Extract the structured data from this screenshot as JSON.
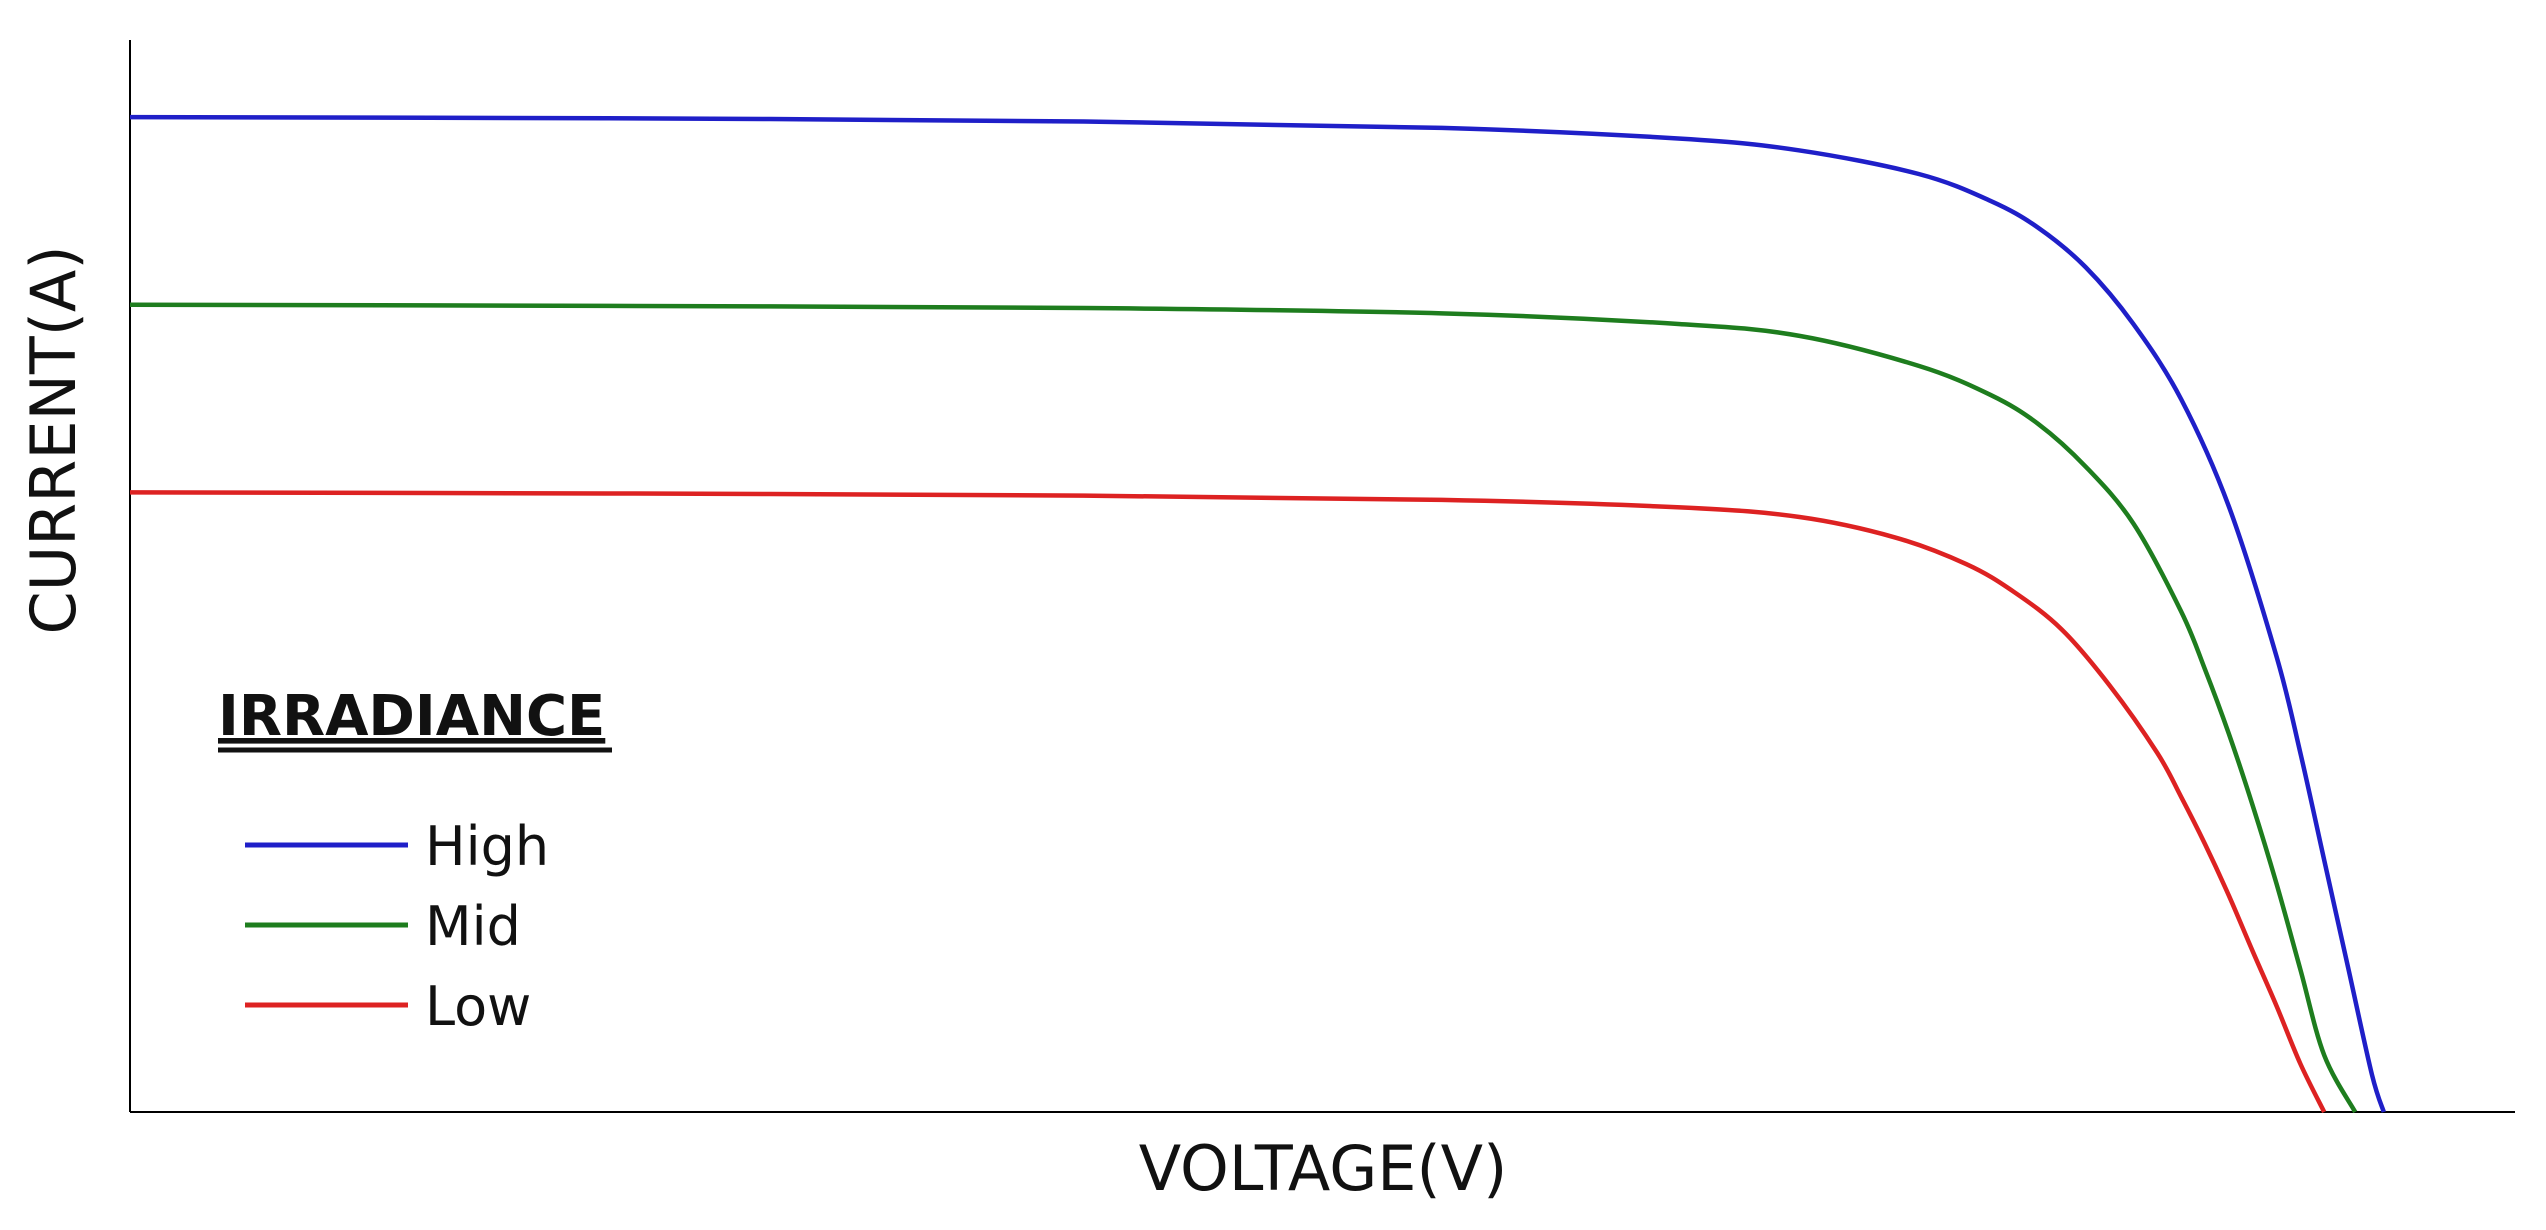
{
  "chart_data": {
    "type": "line",
    "xlabel": "VOLTAGE(V)",
    "ylabel": "CURRENT(A)",
    "xlim": [
      0,
      100
    ],
    "ylim": [
      0,
      100
    ],
    "grid": false,
    "legend": {
      "title": "IRRADIANCE",
      "position": "left"
    },
    "series": [
      {
        "name": "High",
        "color": "#1f1fc8",
        "x": [
          0,
          20,
          40,
          55,
          65,
          70,
          75,
          78,
          80,
          82,
          84,
          86,
          88,
          90,
          91,
          92,
          93,
          94,
          94.5
        ],
        "y": [
          92.8,
          92.7,
          92.4,
          91.8,
          90.8,
          89.7,
          87.5,
          85,
          82.5,
          78.8,
          73.5,
          66.5,
          56.5,
          42.5,
          33.5,
          23.5,
          13.5,
          3.5,
          0
        ]
      },
      {
        "name": "Mid",
        "color": "#1e7d1e",
        "x": [
          0,
          20,
          40,
          55,
          65,
          70,
          75,
          78,
          80,
          82,
          84,
          86,
          87,
          88,
          89,
          90,
          91,
          92,
          93.3
        ],
        "y": [
          75.3,
          75.2,
          75.0,
          74.5,
          73.5,
          72.4,
          69.6,
          66.9,
          64.2,
          60.2,
          54.9,
          46.7,
          41.3,
          35.3,
          28.6,
          21.3,
          13.3,
          5.3,
          0
        ]
      },
      {
        "name": "Low",
        "color": "#dd2222",
        "x": [
          0,
          20,
          40,
          55,
          65,
          70,
          74,
          77,
          79,
          81,
          83,
          85,
          86,
          87,
          88,
          89,
          90,
          91,
          92
        ],
        "y": [
          57.8,
          57.7,
          57.5,
          57.1,
          56.4,
          55.5,
          53.6,
          51.1,
          48.5,
          45.0,
          39.8,
          33.5,
          29.4,
          25.0,
          20.2,
          15.0,
          9.9,
          4.5,
          0
        ]
      }
    ]
  }
}
